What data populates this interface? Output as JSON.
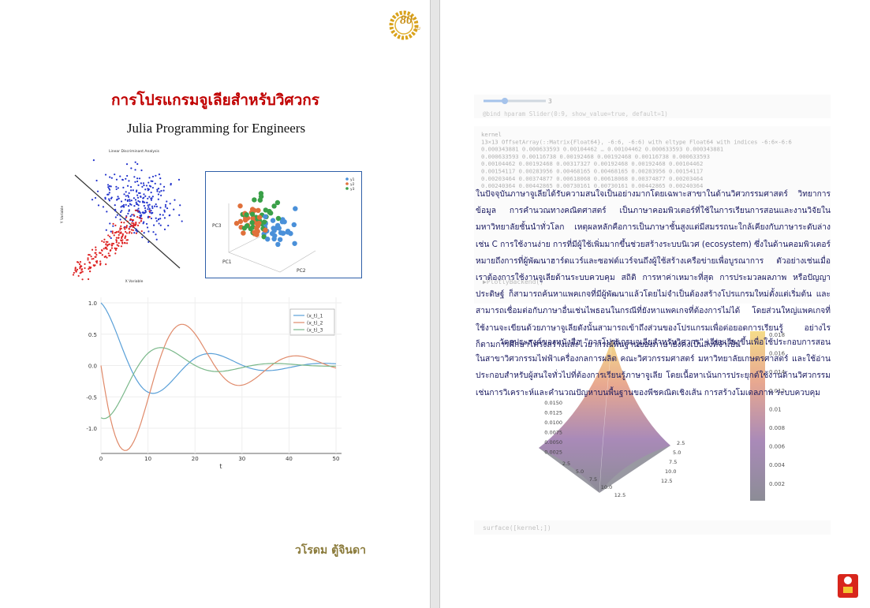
{
  "left_page": {
    "logo": "80",
    "logo_sub": "KU",
    "title": "การโปรแกรมจูเลียสำหรับวิศวกร",
    "subtitle": "Julia Programming for Engineers",
    "figure_lda": {
      "title": "Linear Discriminant Analysis",
      "x_label": "X Variable",
      "y_label": "Y Variable"
    },
    "figure_pca": {
      "axes": [
        "PC1",
        "PC2",
        "PC3"
      ],
      "legend": [
        "y1",
        "y2",
        "y3"
      ]
    },
    "figure_lines": {
      "legend": [
        "(x_t)_1",
        "(x_t)_2",
        "(x_t)_3"
      ],
      "yticks": [
        "1.0",
        "0.5",
        "0.0",
        "-0.5",
        "-1.0"
      ],
      "xticks": [
        "0",
        "10",
        "20",
        "30",
        "40",
        "50"
      ],
      "x_label": "t"
    },
    "author": "วโรดม ตู้จินดา"
  },
  "right_page": {
    "slider_value": "3",
    "code_lines": [
      "@bind hparam Slider(0:9, show_value=true, default=1)",
      "kernel",
      "13×13 OffsetArray(::Matrix{Float64}, -6:6, -6:6) with eltype Float64 with indices -6:6×-6:6",
      " 0.000343881  0.000633593  0.00104462  …  0.00104462  0.000633593  0.000343881",
      " 0.000633593  0.00116738   0.00192468     0.00192468  0.00116738   0.000633593",
      " 0.00104462   0.00192468   0.00317327     0.00192468  0.00192468   0.00104462",
      " 0.00154117   0.00283956   0.00468165     0.00468165  0.00283956   0.00154117",
      " 0.00203464   0.00374877   0.00618068     0.00618068  0.00374877   0.00203464",
      " 0.00240364   0.00442865   0.00730161     0.00730161  0.00442865   0.00240364"
    ],
    "backend": "▶PlotlyBackend()",
    "paragraphs": [
      "ในปัจจุบันภาษาจูเลียได้รับความสนใจเป็นอย่างมากโดยเฉพาะสาขาในด้านวิศวกรรมศาสตร์ วิทยาการข้อมูล การคำนวณทางคณิตศาสตร์ เป็นภาษาคอมพิวเตอร์ที่ใช้ในการเรียนการสอนและงานวิจัยในมหาวิทยาลัยชั้นนำทั่วโลก เหตุผลหลักคือการเป็นภาษาชั้นสูงแต่มีสมรรถนะใกล้เคียงกับภาษาระดับล่างเช่น C การใช้งานง่าย การที่มีผู้ใช้เพิ่มมากขึ้นช่วยสร้างระบบนิเวศ (ecosystem) ซึ่งในด้านคอมพิวเตอร์หมายถึงการที่ผู้พัฒนาฮาร์ดแวร์และซอฟต์แวร์จนถึงผู้ใช้สร้างเครือข่ายเพื่อบูรณาการ ตัวอย่างเช่นเมื่อเราต้องการใช้งานจูเลียด้านระบบควบคุม สถิติ การหาค่าเหมาะที่สุด การประมวลผลภาพ หรือปัญญาประดิษฐ์ ก็สามารถค้นหาแพคเกจที่มีผู้พัฒนาแล้วโดยไม่จำเป็นต้องสร้างโปรแกรมใหม่ตั้งแต่เริ่มต้น และสามารถเชื่อมต่อกับภาษาอื่นเช่นไพธอนในกรณีที่ยังหาแพคเกจที่ต้องการไม่ได้ โดยส่วนใหญ่แพคเกจที่ใช้งานจะเขียนด้วยภาษาจูเลียดังนั้นสามารถเข้าถึงส่วนของโปรแกรมเพื่อต่อยอดการเรียนรู้ อย่างไรก็ตามการศึกษาโครงสร้างและไวยากรณ์พื้นฐานของภาษายังคงเป็นสิ่งที่จำเป็น",
      "วัตถุประสงค์ของหนังสือ \"การโปรแกรมจูเลียสำหรับวิศวกร\" เรียบเรียงขึ้นเพื่อใช้ประกอบการสอนในสาขาวิศวกรรมไฟฟ้าเครื่องกลการผลิต คณะวิศวกรรมศาสตร์ มหาวิทยาลัยเกษตรศาสตร์ และใช้อ่านประกอบสำหรับผู้สนใจทั่วไปที่ต้องการเรียนรู้ภาษาจูเลีย โดยเนื้อหาเน้นการประยุกต์ใช้งานด้านวิศวกรรม เช่นการวิเคราะห์และคำนวณปัญหาบนพื้นฐานของพีชคณิตเชิงเส้น การสร้างโมเดลภาพ ระบบควบคุม"
    ],
    "surface": {
      "zticks": [
        "0.0150",
        "0.0125",
        "0.0100",
        "0.0075",
        "0.0050",
        "0.0025"
      ],
      "xticks": [
        "2.5",
        "5.0",
        "7.5",
        "10.0",
        "12.5"
      ],
      "yticks": [
        "2.5",
        "5.0",
        "7.5",
        "10.0",
        "12.5"
      ],
      "colorbar_ticks": [
        "0.018",
        "0.016",
        "0.014",
        "0.012",
        "0.01",
        "0.008",
        "0.006",
        "0.004",
        "0.002"
      ]
    },
    "code_footer": "surface([kernel;])"
  }
}
